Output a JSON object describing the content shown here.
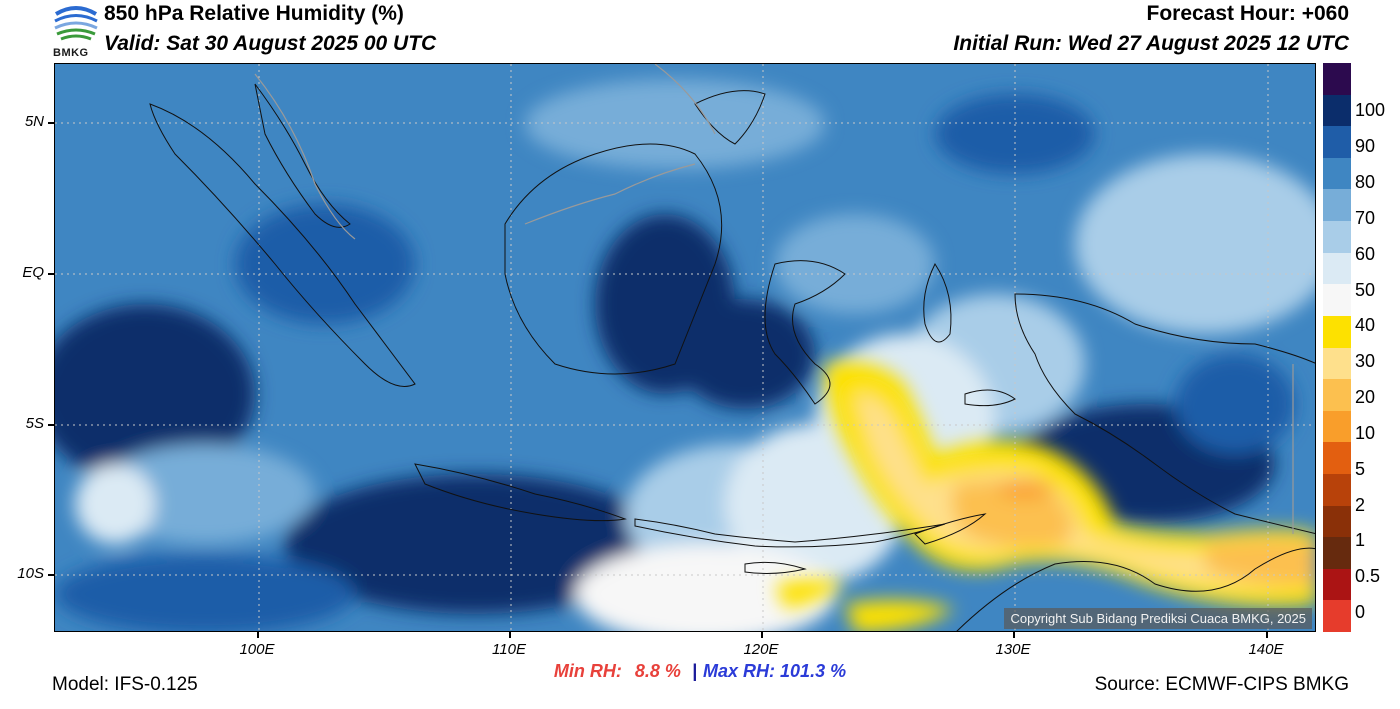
{
  "header": {
    "title": "850 hPa Relative Humidity (%)",
    "valid": "Valid: Sat 30 August 2025 00 UTC",
    "forecast_hour": "Forecast Hour: +060",
    "initial_run": "Initial Run: Wed 27 August 2025 12 UTC"
  },
  "logo": {
    "text": "BMKG",
    "icon": "bmkg-logo-icon"
  },
  "map": {
    "lat_labels": [
      "5N",
      "EQ",
      "5S",
      "10S"
    ],
    "lon_labels": [
      "100E",
      "110E",
      "120E",
      "130E",
      "140E"
    ],
    "copyright": "Copyright Sub Bidang Prediksi Cuaca BMKG, 2025"
  },
  "stats": {
    "min_label": "Min RH:",
    "min_value": "8.8 %",
    "separator": "|",
    "max_label": "Max RH:",
    "max_value": "101.3 %"
  },
  "footer": {
    "model": "Model: IFS-0.125",
    "source": "Source: ECMWF-CIPS BMKG"
  },
  "colorbar": {
    "labels": [
      "100",
      "90",
      "80",
      "70",
      "60",
      "50",
      "40",
      "30",
      "20",
      "10",
      "5",
      "2",
      "1",
      "0.5",
      "0"
    ],
    "colors": [
      "#2c0a4e",
      "#0b2d6b",
      "#1f5da8",
      "#3f86c2",
      "#77add8",
      "#a9cde8",
      "#dbeaf4",
      "#f7f7f7",
      "#fde100",
      "#fee08c",
      "#fcc04f",
      "#f99e2b",
      "#e35f10",
      "#b8420a",
      "#8a3008",
      "#662a0e",
      "#ab1414",
      "#e63c2c"
    ]
  }
}
